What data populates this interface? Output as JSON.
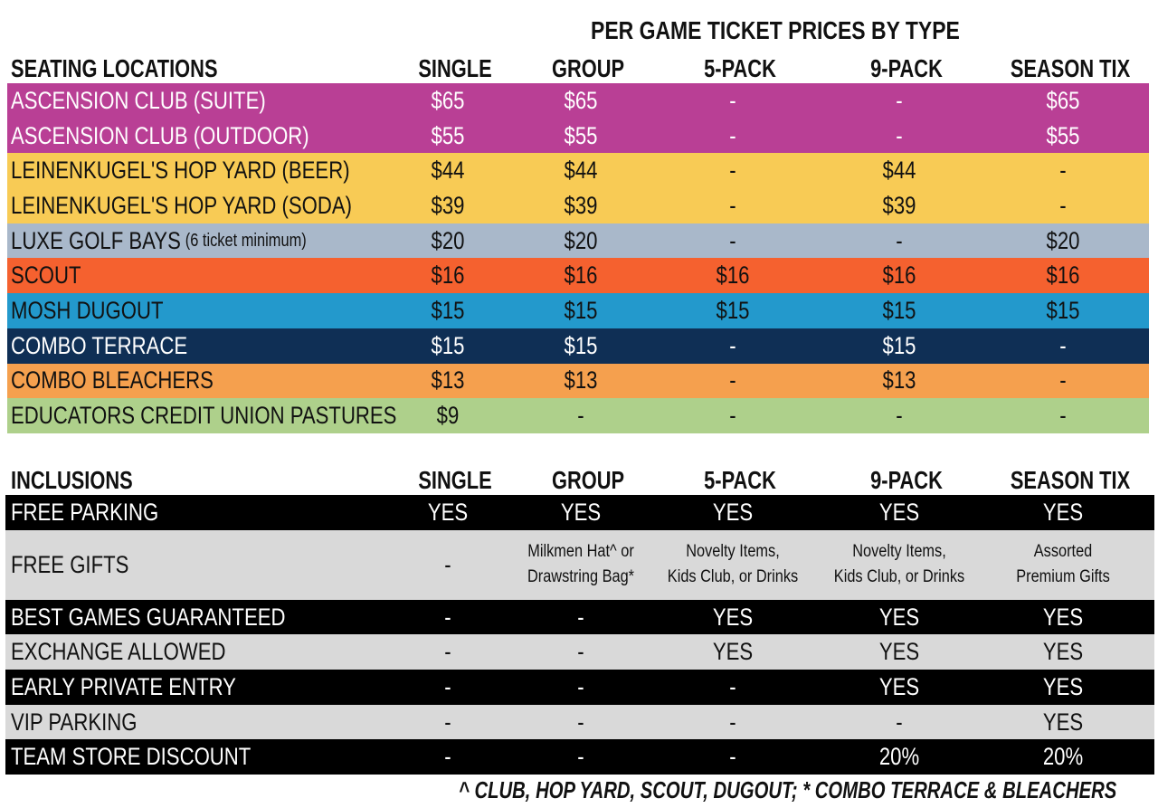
{
  "title": "PER GAME TICKET PRICES BY TYPE",
  "columns": [
    "SINGLE",
    "GROUP",
    "5-PACK",
    "9-PACK",
    "SEASON TIX"
  ],
  "pricing": {
    "header": "SEATING LOCATIONS",
    "rows": [
      {
        "name": "ASCENSION CLUB (SUITE)",
        "note": "",
        "bg": "#B93F95",
        "fg": "#ffffff",
        "values": [
          "$65",
          "$65",
          "-",
          "-",
          "$65"
        ]
      },
      {
        "name": "ASCENSION CLUB (OUTDOOR)",
        "note": "",
        "bg": "#B93F95",
        "fg": "#ffffff",
        "values": [
          "$55",
          "$55",
          "-",
          "-",
          "$55"
        ]
      },
      {
        "name": "LEINENKUGEL'S HOP YARD (BEER)",
        "note": "",
        "bg": "#F8CB55",
        "fg": "#111111",
        "values": [
          "$44",
          "$44",
          "-",
          "$44",
          "-"
        ]
      },
      {
        "name": "LEINENKUGEL'S HOP YARD (SODA)",
        "note": "",
        "bg": "#F8CB55",
        "fg": "#111111",
        "values": [
          "$39",
          "$39",
          "-",
          "$39",
          "-"
        ]
      },
      {
        "name": "LUXE GOLF BAYS",
        "note": "(6 ticket minimum)",
        "bg": "#A9B8CA",
        "fg": "#111111",
        "values": [
          "$20",
          "$20",
          "-",
          "-",
          "$20"
        ]
      },
      {
        "name": "SCOUT",
        "note": "",
        "bg": "#F5612F",
        "fg": "#111111",
        "values": [
          "$16",
          "$16",
          "$16",
          "$16",
          "$16"
        ]
      },
      {
        "name": "MOSH DUGOUT",
        "note": "",
        "bg": "#2399CC",
        "fg": "#111111",
        "values": [
          "$15",
          "$15",
          "$15",
          "$15",
          "$15"
        ]
      },
      {
        "name": "COMBO TERRACE",
        "note": "",
        "bg": "#0F2F55",
        "fg": "#ffffff",
        "values": [
          "$15",
          "$15",
          "-",
          "$15",
          "-"
        ]
      },
      {
        "name": "COMBO BLEACHERS",
        "note": "",
        "bg": "#F5A04E",
        "fg": "#111111",
        "values": [
          "$13",
          "$13",
          "-",
          "$13",
          "-"
        ]
      },
      {
        "name": "EDUCATORS CREDIT UNION PASTURES",
        "note": "",
        "bg": "#AED08B",
        "fg": "#111111",
        "values": [
          "$9",
          "-",
          "-",
          "-",
          "-"
        ]
      }
    ]
  },
  "inclusions": {
    "header": "INCLUSIONS",
    "rows": [
      {
        "name": "FREE PARKING",
        "bg": "#000000",
        "fg": "#ffffff",
        "tall": false,
        "values": [
          "YES",
          "YES",
          "YES",
          "YES",
          "YES"
        ]
      },
      {
        "name": "FREE GIFTS",
        "bg": "#D9D9D9",
        "fg": "#111111",
        "tall": true,
        "values": [
          "-",
          "Milkmen Hat^ or|Drawstring Bag*",
          "Novelty Items,|Kids Club, or Drinks",
          "Novelty Items,|Kids Club, or Drinks",
          "Assorted|Premium Gifts"
        ]
      },
      {
        "name": "BEST GAMES GUARANTEED",
        "bg": "#000000",
        "fg": "#ffffff",
        "tall": false,
        "values": [
          "-",
          "-",
          "YES",
          "YES",
          "YES"
        ]
      },
      {
        "name": "EXCHANGE ALLOWED",
        "bg": "#D9D9D9",
        "fg": "#111111",
        "tall": false,
        "values": [
          "-",
          "-",
          "YES",
          "YES",
          "YES"
        ]
      },
      {
        "name": "EARLY PRIVATE ENTRY",
        "bg": "#000000",
        "fg": "#ffffff",
        "tall": false,
        "values": [
          "-",
          "-",
          "-",
          "YES",
          "YES"
        ]
      },
      {
        "name": "VIP PARKING",
        "bg": "#D9D9D9",
        "fg": "#111111",
        "tall": false,
        "values": [
          "-",
          "-",
          "-",
          "-",
          "YES"
        ]
      },
      {
        "name": "TEAM STORE DISCOUNT",
        "bg": "#000000",
        "fg": "#ffffff",
        "tall": false,
        "values": [
          "-",
          "-",
          "-",
          "20%",
          "20%"
        ]
      }
    ]
  },
  "footnote": "^ CLUB, HOP YARD, SCOUT, DUGOUT; * COMBO TERRACE & BLEACHERS"
}
